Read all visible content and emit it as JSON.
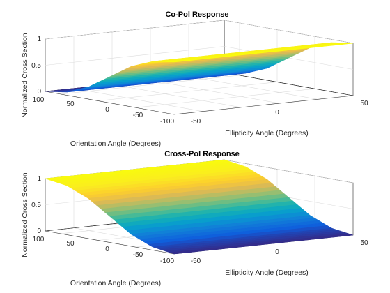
{
  "figure": {
    "background": "#ffffff"
  },
  "chart_data": [
    {
      "type": "surface",
      "title": "Co-Pol Response",
      "xlabel": "Ellipticity Angle (Degrees)",
      "ylabel": "Orientation Angle (Degrees)",
      "zlabel": "Normalized Cross Section",
      "xlim": [
        -45,
        45
      ],
      "ylim": [
        -90,
        90
      ],
      "zlim": [
        0,
        1
      ],
      "xticks": [
        "-50",
        "0",
        "50"
      ],
      "yticks": [
        "100",
        "50",
        "0",
        "-50",
        "-100"
      ],
      "zticks": [
        "0",
        "0.5",
        "1"
      ],
      "grid": true,
      "colormap": "parula",
      "x": [
        -45,
        -30,
        -15,
        0,
        15,
        30,
        45
      ],
      "y": [
        -90,
        -60,
        -30,
        0,
        30,
        60,
        90
      ],
      "z": [
        [
          0.0,
          0.06,
          0.23,
          0.5,
          0.77,
          0.94,
          1.0
        ],
        [
          0.0,
          0.06,
          0.23,
          0.5,
          0.77,
          0.94,
          1.0
        ],
        [
          0.0,
          0.06,
          0.23,
          0.5,
          0.77,
          0.94,
          1.0
        ],
        [
          0.0,
          0.06,
          0.23,
          0.5,
          0.77,
          0.94,
          1.0
        ],
        [
          0.0,
          0.06,
          0.23,
          0.5,
          0.77,
          0.94,
          1.0
        ],
        [
          0.0,
          0.06,
          0.23,
          0.5,
          0.77,
          0.94,
          1.0
        ],
        [
          0.0,
          0.06,
          0.23,
          0.5,
          0.77,
          0.94,
          1.0
        ]
      ]
    },
    {
      "type": "surface",
      "title": "Cross-Pol Response",
      "xlabel": "Ellipticity Angle (Degrees)",
      "ylabel": "Orientation Angle (Degrees)",
      "zlabel": "Normalized Cross Section",
      "xlim": [
        -45,
        45
      ],
      "ylim": [
        -90,
        90
      ],
      "zlim": [
        0,
        1
      ],
      "xticks": [
        "-50",
        "0",
        "50"
      ],
      "yticks": [
        "100",
        "50",
        "0",
        "-50",
        "-100"
      ],
      "zticks": [
        "0",
        "0.5",
        "1"
      ],
      "grid": true,
      "colormap": "parula",
      "x": [
        -45,
        -30,
        -15,
        0,
        15,
        30,
        45
      ],
      "y": [
        -90,
        -60,
        -30,
        0,
        30,
        60,
        90
      ],
      "z": [
        [
          1.0,
          0.94,
          0.77,
          0.5,
          0.23,
          0.06,
          0.0
        ],
        [
          1.0,
          0.94,
          0.77,
          0.5,
          0.23,
          0.06,
          0.0
        ],
        [
          1.0,
          0.94,
          0.77,
          0.5,
          0.23,
          0.06,
          0.0
        ],
        [
          1.0,
          0.94,
          0.77,
          0.5,
          0.23,
          0.06,
          0.0
        ],
        [
          1.0,
          0.94,
          0.77,
          0.5,
          0.23,
          0.06,
          0.0
        ],
        [
          1.0,
          0.94,
          0.77,
          0.5,
          0.23,
          0.06,
          0.0
        ],
        [
          1.0,
          0.94,
          0.77,
          0.5,
          0.23,
          0.06,
          0.0
        ]
      ]
    }
  ]
}
